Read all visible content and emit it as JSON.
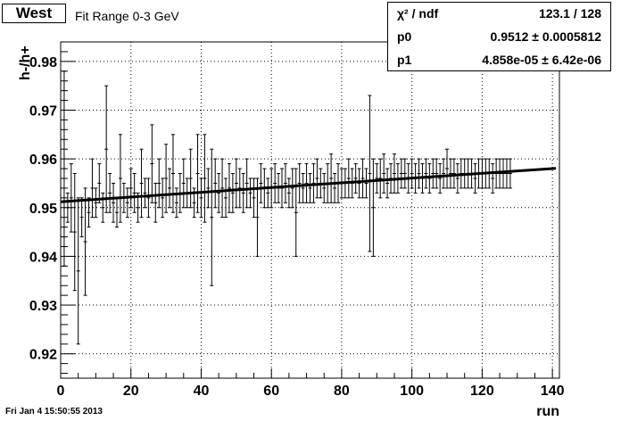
{
  "chart_data": {
    "type": "scatter",
    "title": "West",
    "subtitle": "Fit Range 0-3 GeV",
    "xlabel": "run",
    "ylabel": "h-/h+",
    "xlim": [
      0,
      142
    ],
    "ylim": [
      0.915,
      0.984
    ],
    "x_ticks": [
      0,
      20,
      40,
      60,
      80,
      100,
      120,
      140
    ],
    "y_ticks": [
      0.92,
      0.93,
      0.94,
      0.95,
      0.96,
      0.97,
      0.98
    ],
    "grid": true,
    "series": [
      {
        "style": "points-with-error-bars",
        "x": [
          1,
          2,
          3,
          4,
          5,
          6,
          7,
          8,
          9,
          10,
          11,
          12,
          13,
          14,
          15,
          16,
          17,
          18,
          19,
          20,
          21,
          22,
          23,
          24,
          25,
          26,
          27,
          28,
          29,
          30,
          31,
          32,
          33,
          34,
          35,
          36,
          37,
          38,
          39,
          40,
          41,
          42,
          43,
          44,
          45,
          46,
          47,
          48,
          49,
          50,
          51,
          52,
          53,
          54,
          55,
          56,
          57,
          58,
          59,
          60,
          61,
          62,
          63,
          64,
          65,
          66,
          67,
          68,
          69,
          70,
          71,
          72,
          73,
          74,
          75,
          76,
          77,
          78,
          79,
          80,
          81,
          82,
          83,
          84,
          85,
          86,
          87,
          88,
          89,
          90,
          91,
          92,
          93,
          94,
          95,
          96,
          97,
          98,
          99,
          100,
          101,
          102,
          103,
          104,
          105,
          106,
          107,
          108,
          109,
          110,
          111,
          112,
          113,
          114,
          115,
          116,
          117,
          118,
          119,
          120,
          121,
          122,
          123,
          124,
          125,
          126,
          127,
          128
        ],
        "y": [
          0.958,
          0.95,
          0.952,
          0.945,
          0.937,
          0.948,
          0.943,
          0.949,
          0.954,
          0.951,
          0.955,
          0.95,
          0.962,
          0.953,
          0.951,
          0.949,
          0.956,
          0.952,
          0.951,
          0.954,
          0.953,
          0.95,
          0.955,
          0.953,
          0.952,
          0.959,
          0.951,
          0.955,
          0.952,
          0.956,
          0.954,
          0.957,
          0.951,
          0.953,
          0.955,
          0.953,
          0.956,
          0.951,
          0.957,
          0.952,
          0.956,
          0.954,
          0.948,
          0.955,
          0.953,
          0.954,
          0.952,
          0.954,
          0.953,
          0.955,
          0.954,
          0.953,
          0.955,
          0.953,
          0.952,
          0.948,
          0.955,
          0.954,
          0.953,
          0.954,
          0.955,
          0.954,
          0.954,
          0.955,
          0.953,
          0.954,
          0.949,
          0.955,
          0.954,
          0.955,
          0.954,
          0.955,
          0.956,
          0.955,
          0.954,
          0.955,
          0.956,
          0.954,
          0.955,
          0.955,
          0.955,
          0.956,
          0.955,
          0.956,
          0.955,
          0.956,
          0.955,
          0.957,
          0.95,
          0.956,
          0.956,
          0.957,
          0.955,
          0.956,
          0.957,
          0.956,
          0.957,
          0.957,
          0.956,
          0.957,
          0.956,
          0.957,
          0.956,
          0.957,
          0.956,
          0.957,
          0.957,
          0.956,
          0.957,
          0.958,
          0.957,
          0.957,
          0.956,
          0.957,
          0.957,
          0.957,
          0.957,
          0.956,
          0.957,
          0.957,
          0.957,
          0.957,
          0.956,
          0.957,
          0.957,
          0.957,
          0.957,
          0.957
        ],
        "yerr": [
          0.02,
          0.003,
          0.007,
          0.012,
          0.015,
          0.004,
          0.011,
          0.003,
          0.006,
          0.003,
          0.004,
          0.003,
          0.013,
          0.004,
          0.004,
          0.003,
          0.009,
          0.003,
          0.003,
          0.004,
          0.004,
          0.003,
          0.007,
          0.003,
          0.004,
          0.008,
          0.004,
          0.005,
          0.004,
          0.007,
          0.004,
          0.008,
          0.003,
          0.004,
          0.005,
          0.003,
          0.006,
          0.003,
          0.008,
          0.004,
          0.009,
          0.004,
          0.014,
          0.005,
          0.004,
          0.006,
          0.004,
          0.005,
          0.004,
          0.005,
          0.004,
          0.004,
          0.005,
          0.003,
          0.004,
          0.008,
          0.004,
          0.004,
          0.003,
          0.004,
          0.004,
          0.003,
          0.004,
          0.004,
          0.003,
          0.004,
          0.009,
          0.004,
          0.003,
          0.004,
          0.003,
          0.004,
          0.004,
          0.003,
          0.003,
          0.004,
          0.005,
          0.003,
          0.004,
          0.003,
          0.003,
          0.004,
          0.003,
          0.003,
          0.003,
          0.004,
          0.003,
          0.016,
          0.01,
          0.003,
          0.004,
          0.004,
          0.003,
          0.003,
          0.004,
          0.003,
          0.003,
          0.003,
          0.003,
          0.003,
          0.003,
          0.003,
          0.003,
          0.003,
          0.003,
          0.003,
          0.003,
          0.003,
          0.003,
          0.004,
          0.003,
          0.003,
          0.003,
          0.003,
          0.003,
          0.003,
          0.003,
          0.003,
          0.003,
          0.003,
          0.003,
          0.003,
          0.003,
          0.003,
          0.003,
          0.003,
          0.003,
          0.003
        ]
      },
      {
        "style": "fit-line",
        "x": [
          0,
          141
        ],
        "y": [
          0.9512,
          0.95805
        ]
      }
    ]
  },
  "stats": [
    {
      "label": "χ² / ndf",
      "value": "123.1 / 128"
    },
    {
      "label": "p0",
      "value": "0.9512 ± 0.0005812"
    },
    {
      "label": "p1",
      "value": "4.858e-05 ± 6.42e-06"
    }
  ],
  "timestamp": "Fri Jan  4 15:50:55 2013"
}
